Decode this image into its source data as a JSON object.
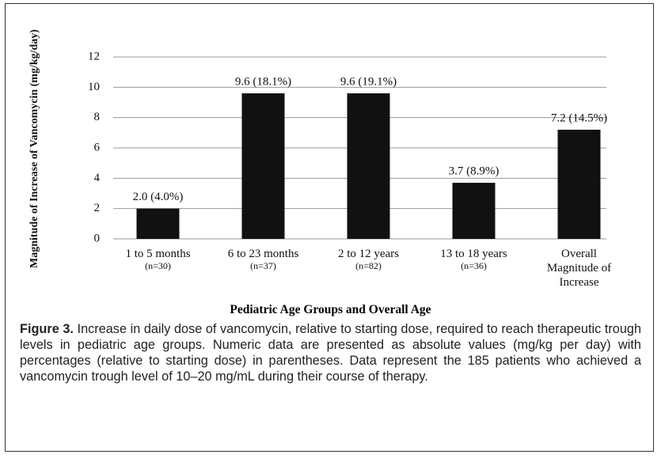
{
  "chart_data": {
    "type": "bar",
    "xlabel": "Pediatric Age Groups and Overall Age",
    "ylabel": "Magnitude of Increase of Vancomycin (mg/kg/day)",
    "categories": [
      "1 to 5 months",
      "6 to 23 months",
      "2 to 12 years",
      "13 to 18 years",
      "Overall Magnitude of Increase"
    ],
    "sample_sizes": [
      "(n=30)",
      "(n=37)",
      "(n=82)",
      "(n=36)",
      null
    ],
    "values": [
      2.0,
      9.6,
      9.6,
      3.7,
      7.2
    ],
    "value_labels": [
      "2.0 (4.0%)",
      "9.6 (18.1%)",
      "9.6 (19.1%)",
      "3.7 (8.9%)",
      "7.2 (14.5%)"
    ],
    "color": "#111111",
    "ylim": [
      0,
      12
    ],
    "yticks": [
      0,
      2,
      4,
      6,
      8,
      10,
      12
    ],
    "grid": true
  },
  "caption": {
    "label": "Figure 3.",
    "text": "Increase in daily dose of vancomycin, relative to starting dose, required to reach therapeutic trough levels in pediatric age groups. Numeric data are presented as absolute values (mg/kg per day) with percentages (relative to starting dose) in parentheses. Data represent the 185 patients who achieved a vancomycin trough level of 10–20 mg/mL during their course of therapy."
  }
}
